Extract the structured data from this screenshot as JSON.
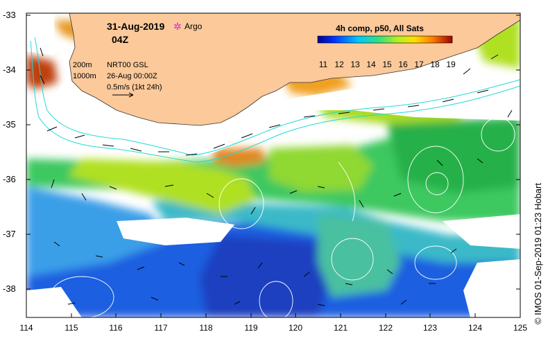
{
  "header": {
    "date": "31-Aug-2019",
    "time": "04Z",
    "argo_label": "Argo",
    "info_line1": "200m",
    "info_line2": "1000m",
    "info_line3": "NRT00 GSL",
    "info_line4": "26-Aug 00:00Z",
    "info_line5": "0.5m/s (1kt 24h)"
  },
  "colorbar": {
    "title": "4h comp, p50, All Sats",
    "ticks": [
      "11",
      "12",
      "13",
      "14",
      "15",
      "16",
      "17",
      "18",
      "19"
    ]
  },
  "axes": {
    "y_ticks": [
      "-33",
      "-34",
      "-35",
      "-36",
      "-37",
      "-38"
    ],
    "x_ticks": [
      "114",
      "115",
      "116",
      "117",
      "118",
      "119",
      "120",
      "121",
      "122",
      "123",
      "124",
      "125"
    ]
  },
  "credit": "© IMOS 01-Sep-2019 01:23 Hobart",
  "colors": {
    "land": "#fbc99a",
    "argo": "#e020e0",
    "contour": "#20d8d8"
  }
}
